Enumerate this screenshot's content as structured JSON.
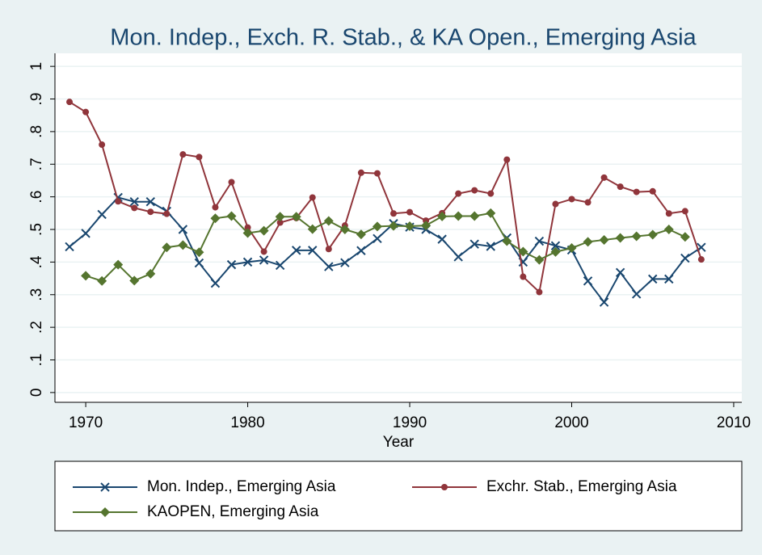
{
  "chart_data": {
    "type": "line",
    "title": "Mon. Indep., Exch. R. Stab., & KA Open., Emerging Asia",
    "x_label": "Year",
    "x": [
      1969,
      1970,
      1971,
      1972,
      1973,
      1974,
      1975,
      1976,
      1977,
      1978,
      1979,
      1980,
      1981,
      1982,
      1983,
      1984,
      1985,
      1986,
      1987,
      1988,
      1989,
      1990,
      1991,
      1992,
      1993,
      1994,
      1995,
      1996,
      1997,
      1998,
      1999,
      2000,
      2001,
      2002,
      2003,
      2004,
      2005,
      2006,
      2007,
      2008
    ],
    "series": [
      {
        "name": "Mon. Indep., Emerging Asia",
        "color": "#1a476f",
        "marker": "x",
        "values": [
          0.447,
          0.488,
          0.546,
          0.598,
          0.585,
          0.585,
          0.556,
          0.5,
          0.397,
          0.335,
          0.392,
          0.4,
          0.406,
          0.39,
          0.436,
          0.436,
          0.386,
          0.398,
          0.435,
          0.472,
          0.518,
          0.507,
          0.5,
          0.47,
          0.416,
          0.455,
          0.448,
          0.474,
          0.4,
          0.464,
          0.45,
          0.437,
          0.342,
          0.277,
          0.368,
          0.302,
          0.348,
          0.348,
          0.412,
          0.445
        ]
      },
      {
        "name": "Exchr. Stab., Emerging Asia",
        "color": "#90353b",
        "marker": "circle",
        "values": [
          0.891,
          0.86,
          0.76,
          0.586,
          0.566,
          0.554,
          0.548,
          0.73,
          0.722,
          0.568,
          0.645,
          0.506,
          0.432,
          0.521,
          0.535,
          0.598,
          0.44,
          0.512,
          0.674,
          0.672,
          0.549,
          0.553,
          0.527,
          0.55,
          0.61,
          0.62,
          0.61,
          0.714,
          0.355,
          0.308,
          0.578,
          0.593,
          0.583,
          0.659,
          0.631,
          0.615,
          0.617,
          0.549,
          0.556,
          0.408
        ]
      },
      {
        "name": "KAOPEN, Emerging Asia",
        "color": "#55752f",
        "marker": "diamond",
        "values": [
          null,
          0.358,
          0.342,
          0.392,
          0.343,
          0.364,
          0.445,
          0.452,
          0.43,
          0.534,
          0.541,
          0.489,
          0.496,
          0.539,
          0.539,
          0.501,
          0.526,
          0.5,
          0.485,
          0.509,
          0.511,
          0.51,
          0.512,
          0.54,
          0.541,
          0.541,
          0.55,
          0.464,
          0.432,
          0.407,
          0.431,
          0.443,
          0.462,
          0.468,
          0.474,
          0.479,
          0.484,
          0.5,
          0.477,
          null
        ]
      }
    ],
    "xlim": [
      1968.1,
      2010.5
    ],
    "xticks": [
      1970,
      1980,
      1990,
      2000,
      2010
    ],
    "ylim": [
      -0.03,
      1.04
    ],
    "yticks": [
      0,
      {
        "value": 0.1,
        "label": ".1"
      },
      {
        "value": 0.2,
        "label": ".2"
      },
      {
        "value": 0.3,
        "label": ".3"
      },
      {
        "value": 0.4,
        "label": ".4"
      },
      {
        "value": 0.5,
        "label": ".5"
      },
      {
        "value": 0.6,
        "label": ".6"
      },
      {
        "value": 0.7,
        "label": ".7"
      },
      {
        "value": 0.8,
        "label": ".8"
      },
      {
        "value": 0.9,
        "label": ".9"
      },
      1
    ],
    "grid": true,
    "legend": "bottom"
  }
}
